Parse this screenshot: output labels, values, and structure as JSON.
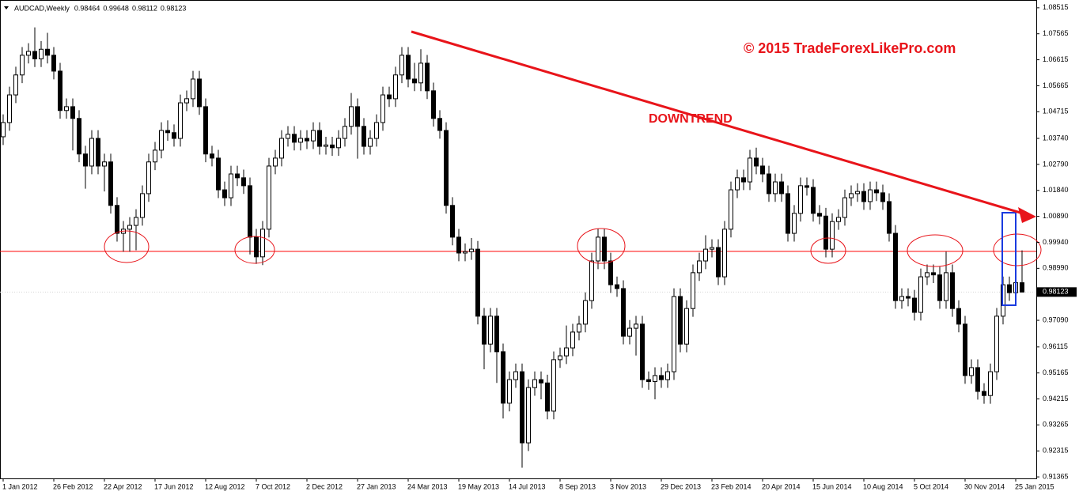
{
  "chart_data": {
    "type": "candlestick",
    "title": "AUDCAD,Weekly",
    "watermark": "© 2015 TradeForexLikePro.com",
    "annotation": "DOWNTREND",
    "categories": [
      "1 Jan 2012",
      null,
      null,
      null,
      null,
      null,
      null,
      null,
      "26 Feb 2012",
      null,
      null,
      null,
      null,
      null,
      null,
      null,
      "22 Apr 2012",
      null,
      null,
      null,
      null,
      null,
      null,
      null,
      "17 Jun 2012",
      null,
      null,
      null,
      null,
      null,
      null,
      null,
      "12 Aug 2012",
      null,
      null,
      null,
      null,
      null,
      null,
      null,
      "7 Oct 2012",
      null,
      null,
      null,
      null,
      null,
      null,
      null,
      "2 Dec 2012",
      null,
      null,
      null,
      null,
      null,
      null,
      null,
      "27 Jan 2013",
      null,
      null,
      null,
      null,
      null,
      null,
      null,
      "24 Mar 2013",
      null,
      null,
      null,
      null,
      null,
      null,
      null,
      "19 May 2013",
      null,
      null,
      null,
      null,
      null,
      null,
      null,
      "14 Jul 2013",
      null,
      null,
      null,
      null,
      null,
      null,
      null,
      "8 Sep 2013",
      null,
      null,
      null,
      null,
      null,
      null,
      null,
      "3 Nov 2013",
      null,
      null,
      null,
      null,
      null,
      null,
      null,
      "29 Dec 2013",
      null,
      null,
      null,
      null,
      null,
      null,
      null,
      "23 Feb 2014",
      null,
      null,
      null,
      null,
      null,
      null,
      null,
      "20 Apr 2014",
      null,
      null,
      null,
      null,
      null,
      null,
      null,
      "15 Jun 2014",
      null,
      null,
      null,
      null,
      null,
      null,
      null,
      "10 Aug 2014",
      null,
      null,
      null,
      null,
      null,
      null,
      null,
      "5 Oct 2014",
      null,
      null,
      null,
      null,
      null,
      null,
      null,
      "30 Nov 2014",
      null,
      null,
      null,
      null,
      null,
      null,
      null,
      "25 Jan 2015",
      null
    ],
    "open": [
      1.038,
      1.0432,
      1.0533,
      1.0606,
      1.0678,
      1.0692,
      1.0665,
      1.07,
      1.0678,
      1.062,
      1.0476,
      1.049,
      1.0447,
      1.0317,
      1.0273,
      1.0374,
      1.0273,
      1.0288,
      1.0129,
      1.0027,
      1.0042,
      1.0056,
      1.0085,
      1.0172,
      1.0288,
      1.0331,
      1.0403,
      1.0395,
      1.0374,
      1.0504,
      1.0519,
      1.0591,
      1.049,
      1.0317,
      1.0302,
      1.0186,
      1.0157,
      1.0244,
      1.023,
      1.0201,
      1.0013,
      0.9941,
      1.0042,
      1.0273,
      1.0302,
      1.0374,
      1.0389,
      1.036,
      1.0374,
      1.0365,
      1.0403,
      1.0345,
      1.035,
      1.034,
      1.0374,
      1.0418,
      1.049,
      1.0418,
      1.0345,
      1.0374,
      1.0432,
      1.0533,
      1.0519,
      1.0606,
      1.0678,
      1.0591,
      1.0577,
      1.0649,
      1.0548,
      1.0447,
      1.0403,
      1.0129,
      1.0013,
      0.9955,
      0.996,
      0.9969,
      0.9724,
      0.9622,
      0.9724,
      0.9594,
      0.9406,
      0.9492,
      0.9521,
      0.9261,
      0.9463,
      0.9492,
      0.948,
      0.9377,
      0.9565,
      0.9579,
      0.9608,
      0.9666,
      0.9695,
      0.9781,
      0.9926,
      1.0013,
      0.9926,
      0.9839,
      0.9825,
      0.9651,
      0.968,
      0.9695,
      0.9492,
      0.9485,
      0.9507,
      0.9492,
      0.9521,
      0.9796,
      0.9622,
      0.9752,
      0.9883,
      0.9926,
      0.9969,
      0.9975,
      0.9868,
      1.0042,
      1.0186,
      1.023,
      1.0215,
      1.0302,
      1.0273,
      1.0244,
      1.0172,
      1.0215,
      1.0172,
      1.0027,
      1.01,
      1.0201,
      1.0195,
      1.01,
      1.009,
      0.9969,
      1.007,
      1.0085,
      1.0157,
      1.0172,
      1.018,
      1.0143,
      1.0186,
      1.0175,
      1.0143,
      1.0027,
      0.9781,
      0.9796,
      0.979,
      0.9738,
      0.9868,
      0.9883,
      0.9875,
      0.9781,
      0.9883,
      0.9752,
      0.9695,
      0.9507,
      0.9536,
      0.9449,
      0.9434,
      0.9521,
      0.9724,
      0.9839,
      0.981,
      0.98464
    ],
    "high": [
      1.0462,
      1.0563,
      1.0636,
      1.0708,
      1.0722,
      1.078,
      1.073,
      1.076,
      1.0708,
      1.065,
      1.052,
      1.052,
      1.0477,
      1.0347,
      1.0404,
      1.0404,
      1.0318,
      1.0318,
      1.0159,
      1.0072,
      1.0086,
      1.0115,
      1.0202,
      1.0318,
      1.0361,
      1.0433,
      1.044,
      1.0425,
      1.0534,
      1.0549,
      1.0621,
      1.0621,
      1.052,
      1.0347,
      1.0332,
      1.0216,
      1.0274,
      1.0274,
      1.026,
      1.0231,
      1.0043,
      1.0072,
      1.0303,
      1.0332,
      1.0404,
      1.0419,
      1.0419,
      1.0404,
      1.0404,
      1.0433,
      1.0433,
      1.038,
      1.038,
      1.0404,
      1.0448,
      1.054,
      1.052,
      1.0448,
      1.0404,
      1.0462,
      1.0563,
      1.0563,
      1.0636,
      1.0708,
      1.0708,
      1.065,
      1.07,
      1.0679,
      1.0578,
      1.0477,
      1.0433,
      1.0159,
      1.0043,
      0.999,
      1.001,
      0.9999,
      0.9754,
      0.9754,
      0.9754,
      0.9624,
      0.9522,
      0.9551,
      0.9551,
      0.9493,
      0.9522,
      0.9522,
      0.951,
      0.9595,
      0.9609,
      0.969,
      0.9696,
      0.9725,
      0.9811,
      0.9956,
      1.0043,
      1.0043,
      0.9956,
      0.9869,
      0.9855,
      0.971,
      0.9725,
      0.9725,
      0.9522,
      0.9537,
      0.9537,
      0.9551,
      0.9826,
      0.9826,
      0.9782,
      0.9913,
      0.9956,
      1.002,
      1.0005,
      1.0005,
      1.0072,
      1.0216,
      1.026,
      1.026,
      1.0332,
      1.034,
      1.0303,
      1.0274,
      1.0245,
      1.0245,
      1.0202,
      1.013,
      1.0231,
      1.0231,
      1.0225,
      1.013,
      1.012,
      1.01,
      1.0115,
      1.0187,
      1.0202,
      1.021,
      1.021,
      1.0216,
      1.0216,
      1.0205,
      1.0173,
      1.0057,
      0.9826,
      0.9826,
      0.982,
      0.9898,
      0.9913,
      0.9913,
      0.9905,
      0.996,
      0.9913,
      0.9782,
      0.9725,
      0.9566,
      0.9566,
      0.9479,
      0.9551,
      0.9754,
      0.9869,
      0.9869,
      0.9876,
      0.99648
    ],
    "low": [
      1.035,
      1.0402,
      1.0503,
      1.0576,
      1.0648,
      1.0635,
      1.0635,
      1.0648,
      1.059,
      1.0446,
      1.0446,
      1.033,
      1.0287,
      1.019,
      1.0243,
      1.0243,
      1.018,
      1.0099,
      0.9997,
      0.996,
      0.996,
      0.9965,
      1.0055,
      1.0142,
      1.0258,
      1.0301,
      1.0365,
      1.0344,
      1.0344,
      1.0474,
      1.0489,
      1.046,
      1.0287,
      1.0272,
      1.0156,
      1.0127,
      1.0127,
      1.02,
      1.0171,
      0.995,
      0.9915,
      0.9911,
      1.0012,
      1.0243,
      1.0272,
      1.0344,
      1.033,
      1.033,
      1.0335,
      1.0335,
      1.0315,
      1.0315,
      1.031,
      1.031,
      1.0344,
      1.0388,
      1.03,
      1.0315,
      1.0315,
      1.0344,
      1.0402,
      1.0489,
      1.0489,
      1.0576,
      1.0561,
      1.0547,
      1.0547,
      1.0518,
      1.0417,
      1.0373,
      1.0099,
      0.9983,
      0.9925,
      0.9925,
      0.993,
      0.9694,
      0.953,
      0.9592,
      0.948,
      0.935,
      0.9376,
      0.9462,
      0.917,
      0.9231,
      0.9433,
      0.942,
      0.9347,
      0.9347,
      0.9535,
      0.9549,
      0.9578,
      0.9636,
      0.9665,
      0.9751,
      0.9896,
      0.9896,
      0.9809,
      0.9795,
      0.9621,
      0.9621,
      0.958,
      0.9462,
      0.9455,
      0.942,
      0.9462,
      0.9462,
      0.9491,
      0.9592,
      0.9592,
      0.9722,
      0.9853,
      0.9896,
      0.9939,
      0.9838,
      0.9838,
      1.0012,
      1.0156,
      1.0185,
      1.0185,
      1.0243,
      1.0214,
      1.0142,
      1.0142,
      1.0142,
      0.9997,
      0.9997,
      1.007,
      1.0165,
      1.007,
      1.006,
      0.9939,
      0.9939,
      1.004,
      1.0055,
      1.0127,
      1.0142,
      1.0113,
      1.0113,
      1.0145,
      1.0113,
      0.9997,
      0.9751,
      0.9751,
      0.976,
      0.9708,
      0.9708,
      0.9838,
      0.9845,
      0.9751,
      0.9751,
      0.9722,
      0.9665,
      0.9477,
      0.9477,
      0.9419,
      0.9404,
      0.9404,
      0.9491,
      0.9694,
      0.978,
      0.978,
      0.98112
    ],
    "close": [
      1.0432,
      1.0533,
      1.0606,
      1.0678,
      1.0692,
      1.0665,
      1.07,
      1.0678,
      1.062,
      1.0476,
      1.049,
      1.0447,
      1.0317,
      1.0273,
      1.0374,
      1.0273,
      1.0288,
      1.0129,
      1.0027,
      1.0042,
      1.0056,
      1.0085,
      1.0172,
      1.0288,
      1.0331,
      1.0403,
      1.0395,
      1.0374,
      1.0504,
      1.0519,
      1.0591,
      1.049,
      1.0317,
      1.0302,
      1.0186,
      1.0157,
      1.0244,
      1.023,
      1.0201,
      1.0013,
      0.9941,
      1.0042,
      1.0273,
      1.0302,
      1.0374,
      1.0389,
      1.036,
      1.0374,
      1.0365,
      1.0403,
      1.0345,
      1.035,
      1.034,
      1.0374,
      1.0418,
      1.049,
      1.0418,
      1.0345,
      1.0374,
      1.0432,
      1.0533,
      1.0519,
      1.0606,
      1.0678,
      1.0591,
      1.0577,
      1.0649,
      1.0548,
      1.0447,
      1.0403,
      1.0129,
      1.0013,
      0.9955,
      0.996,
      0.9969,
      0.9724,
      0.9622,
      0.9724,
      0.9594,
      0.9406,
      0.9492,
      0.9521,
      0.9261,
      0.9463,
      0.9492,
      0.948,
      0.9377,
      0.9565,
      0.9579,
      0.9608,
      0.9666,
      0.9695,
      0.9781,
      0.9926,
      1.0013,
      0.9926,
      0.9839,
      0.9825,
      0.9651,
      0.968,
      0.9695,
      0.9492,
      0.9485,
      0.9507,
      0.9492,
      0.9521,
      0.9796,
      0.9622,
      0.9752,
      0.9883,
      0.9926,
      0.9969,
      0.9975,
      0.9868,
      1.0042,
      1.0186,
      1.023,
      1.0215,
      1.0302,
      1.0273,
      1.0244,
      1.0172,
      1.0215,
      1.0172,
      1.0027,
      1.01,
      1.0201,
      1.0195,
      1.01,
      1.009,
      0.9969,
      1.007,
      1.0085,
      1.0157,
      1.0172,
      1.018,
      1.0143,
      1.0186,
      1.0175,
      1.0143,
      1.0027,
      0.9781,
      0.9796,
      0.979,
      0.9738,
      0.9868,
      0.9883,
      0.9875,
      0.9781,
      0.9883,
      0.9752,
      0.9695,
      0.9507,
      0.9536,
      0.9449,
      0.9434,
      0.9521,
      0.9724,
      0.9839,
      0.981,
      0.98464,
      0.98123
    ],
    "bull_color": "#ffffff",
    "bear_color": "#000000",
    "support_level": 0.9961,
    "support_color": "#ff0000",
    "ylim": [
      0.9131,
      1.088
    ],
    "yticks": [
      1.08515,
      1.07565,
      1.06615,
      1.05665,
      1.04715,
      {
        "value": 1.0374,
        "label": "1.03740"
      },
      {
        "value": 1.0279,
        "label": "1.02790"
      },
      {
        "value": 1.0184,
        "label": "1.01840"
      },
      {
        "value": 1.0089,
        "label": "1.00890"
      },
      {
        "value": 0.9994,
        "label": "0.99940"
      },
      {
        "value": 0.9899,
        "label": "0.98990"
      },
      {
        "value": 0.9709,
        "label": "0.97090"
      },
      0.96115,
      0.95165,
      0.94215,
      0.93265,
      0.92315,
      0.91365
    ],
    "grid": false
  }
}
